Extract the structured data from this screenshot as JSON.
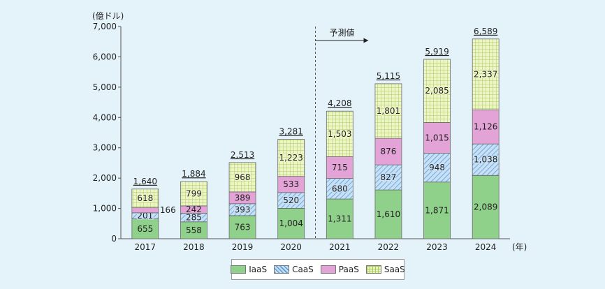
{
  "chart_data": {
    "type": "bar",
    "stacked": true,
    "unit_label": "(億ドル)",
    "x_unit_label": "(年)",
    "categories": [
      "2017",
      "2018",
      "2019",
      "2020",
      "2021",
      "2022",
      "2023",
      "2024"
    ],
    "series": [
      {
        "name": "IaaS",
        "values": [
          655,
          558,
          763,
          1004,
          1311,
          1610,
          1871,
          2089
        ],
        "labels": [
          "655",
          "558",
          "763",
          "1,004",
          "1,311",
          "1,610",
          "1,871",
          "2,089"
        ],
        "color": "#8fd08a",
        "pattern": "solid"
      },
      {
        "name": "CaaS",
        "values": [
          201,
          285,
          393,
          520,
          680,
          827,
          948,
          1038
        ],
        "labels": [
          "201",
          "285",
          "393",
          "520",
          "680",
          "827",
          "948",
          "1,038"
        ],
        "color": "#b9d7f1",
        "pattern": "diagonal"
      },
      {
        "name": "PaaS",
        "values": [
          166,
          242,
          389,
          533,
          715,
          876,
          1015,
          1126
        ],
        "labels": [
          "166",
          "242",
          "389",
          "533",
          "715",
          "876",
          "1,015",
          "1,126"
        ],
        "color": "#e3a3d6",
        "pattern": "solid"
      },
      {
        "name": "SaaS",
        "values": [
          618,
          799,
          968,
          1223,
          1503,
          1801,
          2085,
          2337
        ],
        "labels": [
          "618",
          "799",
          "968",
          "1,223",
          "1,503",
          "1,801",
          "2,085",
          "2,337"
        ],
        "color": "#e3f0b4",
        "pattern": "grid"
      }
    ],
    "totals": [
      "1,640",
      "1,884",
      "2,513",
      "3,281",
      "4,208",
      "5,115",
      "5,919",
      "6,589"
    ],
    "ylim": [
      0,
      7000
    ],
    "yticks": [
      "0",
      "1,000",
      "2,000",
      "3,000",
      "4,000",
      "5,000",
      "6,000",
      "7,000"
    ],
    "forecast_label": "予測値",
    "forecast_from": "2021",
    "legend_position": "bottom-center",
    "grid": false
  }
}
